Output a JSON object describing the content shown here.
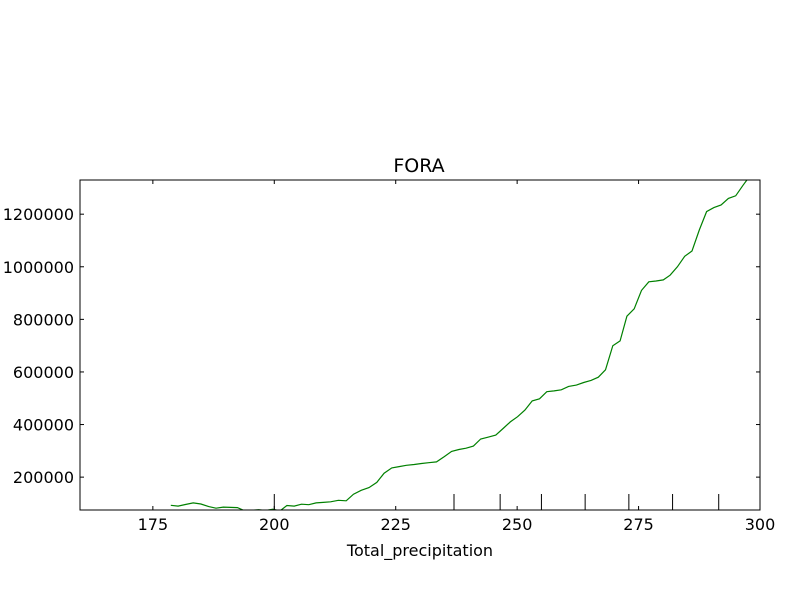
{
  "chart_data": {
    "type": "line",
    "title": "FORA",
    "xlabel": "Total_precipitation",
    "ylabel": "",
    "xlim": [
      160,
      300
    ],
    "ylim": [
      75000,
      1330000
    ],
    "x_ticks": [
      175,
      200,
      225,
      250,
      275,
      300
    ],
    "y_ticks": [
      200000,
      400000,
      600000,
      800000,
      1000000,
      1200000
    ],
    "x_tick_labels": [
      "175",
      "200",
      "225",
      "250",
      "275",
      "300"
    ],
    "y_tick_labels": [
      "200000",
      "400000",
      "600000",
      "800000",
      "1000000",
      "1200000"
    ],
    "rug_x": [
      200,
      237,
      246.5,
      255,
      264,
      273,
      282,
      291.5
    ],
    "grid": false,
    "legend": "none",
    "series": [
      {
        "color": "#008000",
        "x": [
          178.7,
          180.2,
          181.7,
          183.3,
          184.9,
          186.5,
          188.0,
          189.5,
          191.0,
          192.4,
          193.9,
          195.3,
          196.8,
          198.2,
          199.7,
          201.2,
          202.6,
          204.1,
          205.6,
          207.1,
          208.6,
          210.1,
          211.6,
          213.2,
          214.8,
          216.3,
          217.9,
          219.5,
          221.1,
          222.6,
          224.2,
          225.7,
          227.2,
          228.8,
          230.3,
          231.8,
          233.4,
          235.0,
          236.5,
          238.0,
          239.5,
          241.0,
          242.5,
          244.0,
          245.6,
          247.1,
          248.6,
          250.1,
          251.6,
          253.1,
          254.6,
          256.1,
          257.6,
          259.1,
          260.6,
          262.2,
          263.7,
          265.2,
          266.7,
          268.2,
          269.7,
          271.2,
          272.6,
          274.1,
          275.6,
          277.1,
          278.6,
          280.1,
          281.5,
          283.0,
          284.5,
          286.0,
          287.5,
          289.0,
          290.5,
          292.0,
          293.5,
          295.0,
          296.5,
          297.3
        ],
        "y": [
          93000,
          90000,
          96000,
          102000,
          98000,
          88000,
          82000,
          86000,
          85000,
          84000,
          72000,
          74000,
          76000,
          73000,
          78000,
          72000,
          92000,
          90000,
          97000,
          95000,
          102000,
          104000,
          106000,
          112000,
          110000,
          135000,
          150000,
          160000,
          180000,
          215000,
          235000,
          240000,
          245000,
          248000,
          252000,
          255000,
          258000,
          278000,
          298000,
          305000,
          310000,
          318000,
          345000,
          352000,
          360000,
          385000,
          410000,
          430000,
          455000,
          490000,
          498000,
          525000,
          528000,
          532000,
          545000,
          550000,
          560000,
          568000,
          580000,
          608000,
          700000,
          718000,
          812000,
          840000,
          910000,
          943000,
          946000,
          950000,
          968000,
          1000000,
          1040000,
          1060000,
          1140000,
          1210000,
          1225000,
          1235000,
          1260000,
          1270000,
          1310000,
          1330000
        ]
      }
    ]
  }
}
